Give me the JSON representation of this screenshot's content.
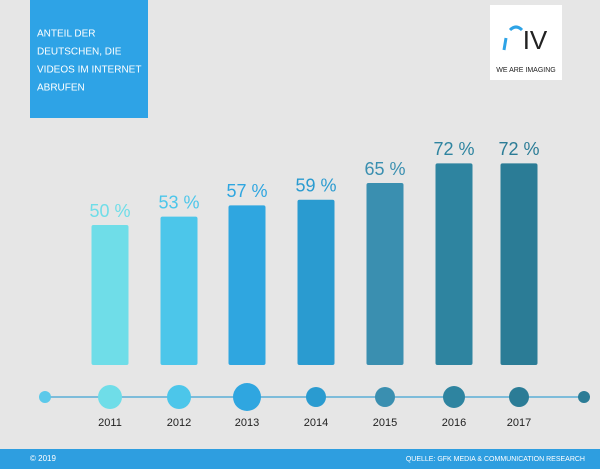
{
  "chart_data": {
    "type": "bar",
    "title": [
      "ANTEIL DER",
      "DEUTSCHEN, DIE",
      "VIDEOS IM INTERNET",
      "ABRUFEN"
    ],
    "categories": [
      "2011",
      "2012",
      "2013",
      "2014",
      "2015",
      "2016",
      "2017"
    ],
    "values": [
      50,
      53,
      57,
      59,
      65,
      72,
      72
    ],
    "value_labels": [
      "50 %",
      "53 %",
      "57 %",
      "59 %",
      "65 %",
      "72 %",
      "72 %"
    ],
    "colors": [
      "#6fdde8",
      "#4cc6ea",
      "#2fa6e0",
      "#2a9bd0",
      "#3a8fb0",
      "#2e84a0",
      "#2b7c96"
    ]
  },
  "logo": {
    "mark": "IV",
    "tagline": "WE ARE IMAGING"
  },
  "footer": {
    "copyright": "© 2019",
    "source": "QUELLE: GFK MEDIA & COMMUNICATION RESEARCH"
  }
}
